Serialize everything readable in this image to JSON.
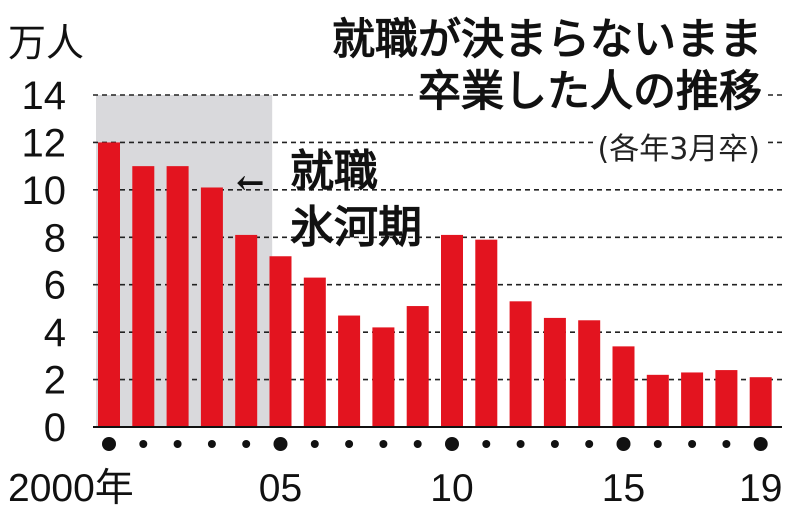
{
  "chart_data": {
    "type": "bar",
    "title_lines": [
      "就職が決まらないまま",
      "卒業した人の推移"
    ],
    "subtitle": "(各年3月卒)",
    "unit": "万人",
    "x": [
      2000,
      2001,
      2002,
      2003,
      2004,
      2005,
      2006,
      2007,
      2008,
      2009,
      2010,
      2011,
      2012,
      2013,
      2014,
      2015,
      2016,
      2017,
      2018,
      2019
    ],
    "values": [
      12.0,
      11.0,
      11.0,
      10.1,
      8.1,
      7.2,
      6.3,
      4.7,
      4.2,
      5.1,
      8.1,
      7.9,
      5.3,
      4.6,
      4.5,
      3.4,
      2.2,
      2.3,
      2.4,
      2.1
    ],
    "ylim": [
      0,
      14
    ],
    "yticks": [
      0,
      2,
      4,
      6,
      8,
      10,
      12,
      14
    ],
    "x_tick_labels": [
      {
        "year": 2000,
        "label": "2000年"
      },
      {
        "year": 2005,
        "label": "05"
      },
      {
        "year": 2010,
        "label": "10"
      },
      {
        "year": 2015,
        "label": "15"
      },
      {
        "year": 2019,
        "label": "19"
      }
    ],
    "major_dot_years": [
      2000,
      2005,
      2010,
      2015,
      2019
    ],
    "grid": "horizontal-dashed",
    "highlight_period": {
      "from": 2000,
      "to": 2004,
      "label_lines": [
        "就職",
        "氷河期"
      ],
      "arrow": "←"
    },
    "colors": {
      "bar": "#e3141f",
      "highlight": "#d9d9dc",
      "grid": "#222222",
      "text": "#111111"
    }
  }
}
